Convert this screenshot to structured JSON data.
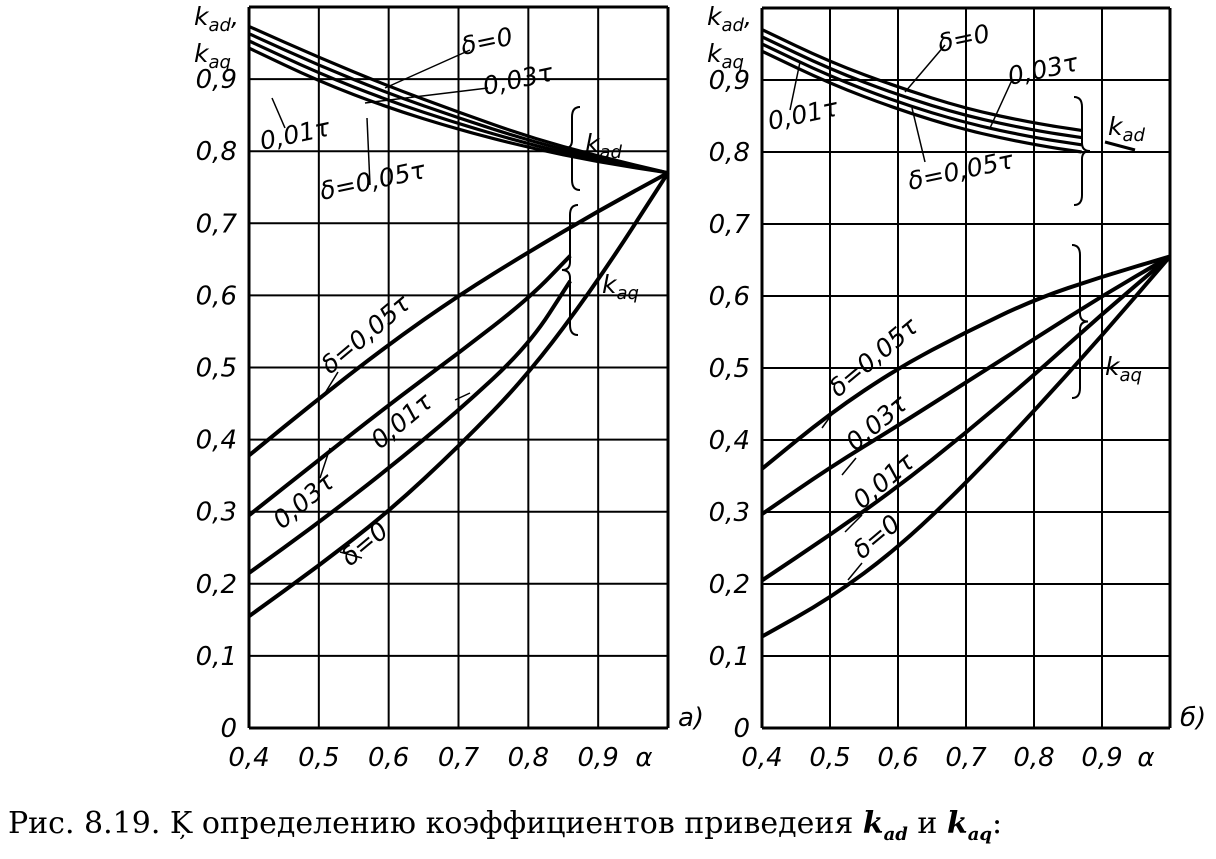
{
  "caption": {
    "prefix": "Рис. 8.19. Ķ определению коэффициентов приведеия ",
    "k": "k",
    "sub_ad": "ad",
    "and": " и ",
    "sub_aq": "aq",
    "suffix": ":"
  },
  "chart_data": [
    {
      "type": "line",
      "panel_label": "a)",
      "xlabel": "α",
      "ylabel": [
        "k",
        "ad",
        ",",
        "k",
        "aq"
      ],
      "xlim": [
        0.4,
        1.0
      ],
      "ylim": [
        0,
        1.0
      ],
      "xticks": [
        "0,4",
        "0,5",
        "0,6",
        "0,7",
        "0,8",
        "0,9"
      ],
      "yticks": [
        "0",
        "0,1",
        "0,2",
        "0,3",
        "0,4",
        "0,5",
        "0,6",
        "0,7",
        "0,8",
        "0,9"
      ],
      "grid": true,
      "series": [
        {
          "group": "kad",
          "name": "δ=0",
          "x": [
            0.4,
            0.5,
            0.6,
            0.7,
            0.8,
            0.9,
            1.0
          ],
          "y": [
            0.973,
            0.93,
            0.89,
            0.854,
            0.82,
            0.793,
            0.77
          ]
        },
        {
          "group": "kad",
          "name": "0,03τ",
          "x": [
            0.4,
            0.5,
            0.6,
            0.7,
            0.8,
            0.9,
            1.0
          ],
          "y": [
            0.963,
            0.919,
            0.88,
            0.846,
            0.815,
            0.79,
            0.77
          ]
        },
        {
          "group": "kad",
          "name": "0,01τ",
          "x": [
            0.4,
            0.5,
            0.6,
            0.7,
            0.8,
            0.9,
            1.0
          ],
          "y": [
            0.953,
            0.908,
            0.87,
            0.838,
            0.81,
            0.787,
            0.77
          ]
        },
        {
          "group": "kad",
          "name": "δ=0,05τ",
          "x": [
            0.4,
            0.5,
            0.6,
            0.7,
            0.8,
            0.9,
            1.0
          ],
          "y": [
            0.943,
            0.897,
            0.86,
            0.83,
            0.805,
            0.785,
            0.77
          ]
        },
        {
          "group": "kaq",
          "name": "δ=0,05τ",
          "x": [
            0.4,
            0.5,
            0.6,
            0.7,
            0.8,
            0.9,
            1.0
          ],
          "y": [
            0.378,
            0.457,
            0.532,
            0.6,
            0.66,
            0.717,
            0.77
          ]
        },
        {
          "group": "kaq",
          "name": "0,03τ",
          "x": [
            0.4,
            0.5,
            0.6,
            0.7,
            0.8,
            0.86
          ],
          "y": [
            0.295,
            0.372,
            0.448,
            0.52,
            0.595,
            0.655
          ]
        },
        {
          "group": "kaq",
          "name": "0,01τ",
          "x": [
            0.4,
            0.5,
            0.6,
            0.7,
            0.8,
            0.86
          ],
          "y": [
            0.215,
            0.285,
            0.36,
            0.44,
            0.53,
            0.62
          ]
        },
        {
          "group": "kaq",
          "name": "δ=0",
          "x": [
            0.4,
            0.5,
            0.6,
            0.7,
            0.8,
            0.9,
            1.0
          ],
          "y": [
            0.155,
            0.225,
            0.3,
            0.39,
            0.49,
            0.62,
            0.77
          ]
        }
      ],
      "annotations": [
        "δ=0",
        "0,03τ",
        "0,01τ",
        "δ=0,05τ",
        "k_ad",
        "δ=0,05τ",
        "0,03τ",
        "0,01τ",
        "δ=0",
        "k_aq"
      ]
    },
    {
      "type": "line",
      "panel_label": "б)",
      "xlabel": "α",
      "ylabel": [
        "k",
        "ad",
        ",",
        "k",
        "aq"
      ],
      "xlim": [
        0.4,
        1.0
      ],
      "ylim": [
        0,
        1.0
      ],
      "xticks": [
        "0,4",
        "0,5",
        "0,6",
        "0,7",
        "0,8",
        "0,9"
      ],
      "yticks": [
        "0",
        "0,1",
        "0,2",
        "0,3",
        "0,4",
        "0,5",
        "0,6",
        "0,7",
        "0,8",
        "0,9"
      ],
      "grid": true,
      "series": [
        {
          "group": "kad",
          "name": "δ=0",
          "x": [
            0.4,
            0.5,
            0.6,
            0.7,
            0.8,
            0.87
          ],
          "y": [
            0.97,
            0.925,
            0.89,
            0.86,
            0.84,
            0.83
          ]
        },
        {
          "group": "kad",
          "name": "0,03τ",
          "x": [
            0.4,
            0.5,
            0.6,
            0.7,
            0.8,
            0.87
          ],
          "y": [
            0.96,
            0.915,
            0.879,
            0.85,
            0.83,
            0.82
          ]
        },
        {
          "group": "kad",
          "name": "0,01τ",
          "x": [
            0.4,
            0.5,
            0.6,
            0.7,
            0.8,
            0.87
          ],
          "y": [
            0.95,
            0.905,
            0.869,
            0.84,
            0.82,
            0.81
          ]
        },
        {
          "group": "kad",
          "name": "δ=0,05τ",
          "x": [
            0.4,
            0.5,
            0.6,
            0.7,
            0.8,
            0.87
          ],
          "y": [
            0.94,
            0.895,
            0.859,
            0.83,
            0.81,
            0.8
          ]
        },
        {
          "group": "kaq",
          "name": "δ=0,05τ",
          "x": [
            0.4,
            0.5,
            0.6,
            0.7,
            0.8,
            0.9,
            1.0
          ],
          "y": [
            0.36,
            0.437,
            0.5,
            0.55,
            0.595,
            0.627,
            0.655
          ]
        },
        {
          "group": "kaq",
          "name": "0,03τ",
          "x": [
            0.4,
            0.5,
            0.6,
            0.7,
            0.8,
            0.9,
            1.0
          ],
          "y": [
            0.297,
            0.362,
            0.42,
            0.48,
            0.54,
            0.6,
            0.655
          ]
        },
        {
          "group": "kaq",
          "name": "0,01τ",
          "x": [
            0.4,
            0.5,
            0.6,
            0.7,
            0.8,
            0.9,
            1.0
          ],
          "y": [
            0.205,
            0.268,
            0.335,
            0.41,
            0.49,
            0.575,
            0.655
          ]
        },
        {
          "group": "kaq",
          "name": "δ=0",
          "x": [
            0.4,
            0.5,
            0.6,
            0.7,
            0.8,
            0.9,
            1.0
          ],
          "y": [
            0.127,
            0.18,
            0.25,
            0.34,
            0.44,
            0.545,
            0.655
          ]
        }
      ],
      "annotations": [
        "δ=0",
        "0,03τ",
        "0,01τ",
        "δ=0,05τ",
        "k_ad",
        "δ=0,05τ",
        "0,03τ",
        "0,01τ",
        "δ=0",
        "k_aq"
      ]
    }
  ]
}
